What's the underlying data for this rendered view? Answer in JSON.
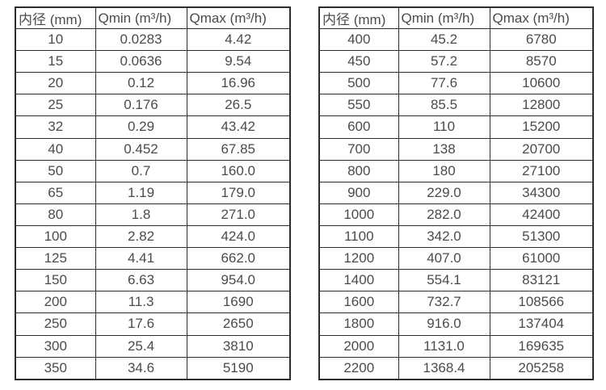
{
  "colors": {
    "background": "#ffffff",
    "border": "#2d2d2d",
    "text": "#4b4b4b"
  },
  "chart_data": [
    {
      "type": "table",
      "name": "flow-rate-table-small-diameters",
      "headers": [
        "内径 (mm)",
        "Qmin (m³/h)",
        "Qmax (m³/h)"
      ],
      "rows": [
        [
          "10",
          "0.0283",
          "4.42"
        ],
        [
          "15",
          "0.0636",
          "9.54"
        ],
        [
          "20",
          "0.12",
          "16.96"
        ],
        [
          "25",
          "0.176",
          "26.5"
        ],
        [
          "32",
          "0.29",
          "43.42"
        ],
        [
          "40",
          "0.452",
          "67.85"
        ],
        [
          "50",
          "0.7",
          "160.0"
        ],
        [
          "65",
          "1.19",
          "179.0"
        ],
        [
          "80",
          "1.8",
          "271.0"
        ],
        [
          "100",
          "2.82",
          "424.0"
        ],
        [
          "125",
          "4.41",
          "662.0"
        ],
        [
          "150",
          "6.63",
          "954.0"
        ],
        [
          "200",
          "11.3",
          "1690"
        ],
        [
          "250",
          "17.6",
          "2650"
        ],
        [
          "300",
          "25.4",
          "3810"
        ],
        [
          "350",
          "34.6",
          "5190"
        ]
      ]
    },
    {
      "type": "table",
      "name": "flow-rate-table-large-diameters",
      "headers": [
        "内径 (mm)",
        "Qmin (m³/h)",
        "Qmax (m³/h)"
      ],
      "rows": [
        [
          "400",
          "45.2",
          "6780"
        ],
        [
          "450",
          "57.2",
          "8570"
        ],
        [
          "500",
          "77.6",
          "10600"
        ],
        [
          "550",
          "85.5",
          "12800"
        ],
        [
          "600",
          "110",
          "15200"
        ],
        [
          "700",
          "138",
          "20700"
        ],
        [
          "800",
          "180",
          "27100"
        ],
        [
          "900",
          "229.0",
          "34300"
        ],
        [
          "1000",
          "282.0",
          "42400"
        ],
        [
          "1100",
          "342.0",
          "51300"
        ],
        [
          "1200",
          "407.0",
          "61000"
        ],
        [
          "1400",
          "554.1",
          "83121"
        ],
        [
          "1600",
          "732.7",
          "108566"
        ],
        [
          "1800",
          "916.0",
          "137404"
        ],
        [
          "2000",
          "1131.0",
          "169635"
        ],
        [
          "2200",
          "1368.4",
          "205258"
        ]
      ]
    }
  ]
}
